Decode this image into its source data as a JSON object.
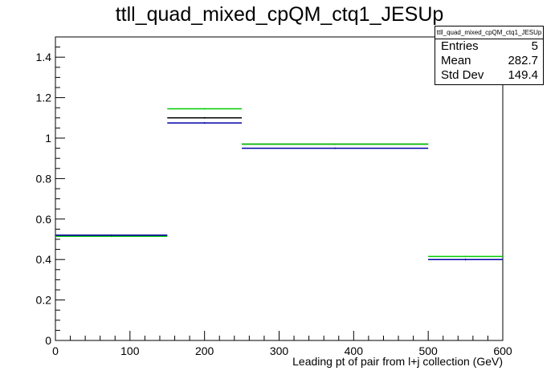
{
  "chart_data": {
    "type": "histogram",
    "title": "ttll_quad_mixed_cpQM_ctq1_JESUp",
    "xlabel": "Leading pt of pair from l+j collection (GeV)",
    "ylabel": "",
    "xlim": [
      0,
      600
    ],
    "ylim": [
      0,
      1.5
    ],
    "x_ticks": [
      0,
      100,
      200,
      300,
      400,
      500,
      600
    ],
    "y_ticks": [
      0,
      0.2,
      0.4,
      0.6,
      0.8,
      1,
      1.2,
      1.4
    ],
    "x_tick_labels": [
      "0",
      "100",
      "200",
      "300",
      "400",
      "500",
      "600"
    ],
    "y_tick_labels": [
      "0",
      "0.2",
      "0.4",
      "0.6",
      "0.8",
      "1",
      "1.2",
      "1.4"
    ],
    "bin_edges": [
      0,
      150,
      250,
      500,
      600
    ],
    "series": [
      {
        "color": "#000000",
        "values": [
          0.52,
          1.1,
          0.97,
          0.4
        ]
      },
      {
        "color": "#00cc00",
        "values": [
          0.515,
          1.145,
          0.97,
          0.415
        ]
      },
      {
        "color": "#0000aa",
        "values": [
          0.52,
          1.075,
          0.95,
          0.4
        ]
      }
    ],
    "grid": false,
    "legend": "none",
    "stats_box": {
      "name": "ttll_quad_mixed_cpQM_ctq1_JESUp",
      "rows": [
        {
          "label": "Entries",
          "value": "5"
        },
        {
          "label": "Mean",
          "value": "282.7"
        },
        {
          "label": "Std Dev",
          "value": "149.4"
        }
      ]
    }
  }
}
